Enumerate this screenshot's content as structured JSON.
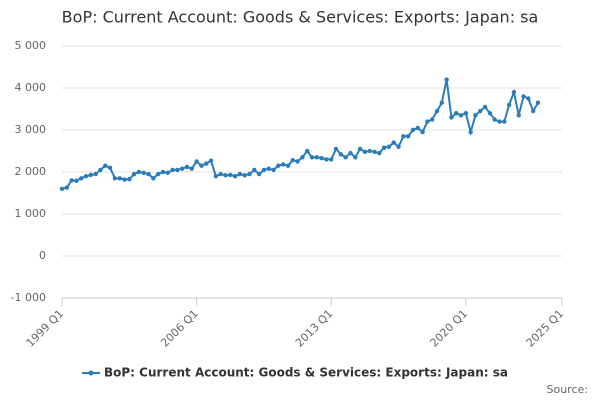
{
  "chart_data": {
    "type": "line",
    "title": "BoP: Current Account: Goods & Services: Exports: Japan: sa",
    "source": "Source:",
    "x": [
      1999,
      1999.25,
      1999.5,
      1999.75,
      2000,
      2000.25,
      2000.5,
      2000.75,
      2001,
      2001.25,
      2001.5,
      2001.75,
      2002,
      2002.25,
      2002.5,
      2002.75,
      2003,
      2003.25,
      2003.5,
      2003.75,
      2004,
      2004.25,
      2004.5,
      2004.75,
      2005,
      2005.25,
      2005.5,
      2005.75,
      2006,
      2006.25,
      2006.5,
      2006.75,
      2007,
      2007.25,
      2007.5,
      2007.75,
      2008,
      2008.25,
      2008.5,
      2008.75,
      2009,
      2009.25,
      2009.5,
      2009.75,
      2010,
      2010.25,
      2010.5,
      2010.75,
      2011,
      2011.25,
      2011.5,
      2011.75,
      2012,
      2012.25,
      2012.5,
      2012.75,
      2013,
      2013.25,
      2013.5,
      2013.75,
      2014,
      2014.25,
      2014.5,
      2014.75,
      2015,
      2015.25,
      2015.5,
      2015.75,
      2016,
      2016.25,
      2016.5,
      2016.75,
      2017,
      2017.25,
      2017.5,
      2017.75,
      2018,
      2018.25,
      2018.5,
      2018.75,
      2019,
      2019.25,
      2019.5,
      2019.75,
      2020,
      2020.25,
      2020.5,
      2020.75,
      2021,
      2021.25,
      2021.5,
      2021.75,
      2022,
      2022.25,
      2022.5,
      2022.75,
      2023,
      2023.25,
      2023.5,
      2023.75
    ],
    "series": [
      {
        "name": "BoP: Current Account: Goods & Services: Exports: Japan: sa",
        "color": "#2a7db8",
        "values": [
          1600,
          1630,
          1800,
          1790,
          1850,
          1900,
          1930,
          1950,
          2050,
          2150,
          2100,
          1850,
          1850,
          1820,
          1830,
          1950,
          2000,
          1980,
          1950,
          1850,
          1950,
          2000,
          1980,
          2050,
          2050,
          2080,
          2120,
          2080,
          2250,
          2150,
          2200,
          2270,
          1900,
          1950,
          1920,
          1930,
          1900,
          1950,
          1920,
          1950,
          2050,
          1950,
          2050,
          2080,
          2050,
          2150,
          2180,
          2150,
          2280,
          2250,
          2350,
          2500,
          2350,
          2350,
          2330,
          2300,
          2300,
          2550,
          2420,
          2350,
          2450,
          2350,
          2550,
          2480,
          2500,
          2480,
          2450,
          2580,
          2600,
          2700,
          2600,
          2850,
          2850,
          3000,
          3050,
          2950,
          3200,
          3250,
          3450,
          3650,
          4200,
          3300,
          3400,
          3350,
          3400,
          2950,
          3350,
          3450,
          3550,
          3400,
          3250,
          3200,
          3200,
          3600,
          3900,
          3350,
          3800,
          3750,
          3450,
          3650
        ]
      }
    ],
    "xlim": [
      1999,
      2025
    ],
    "xticks": [
      {
        "value": 1999,
        "label": "1999 Q1"
      },
      {
        "value": 2006,
        "label": "2006 Q1"
      },
      {
        "value": 2013,
        "label": "2013 Q1"
      },
      {
        "value": 2020,
        "label": "2020 Q1"
      },
      {
        "value": 2025,
        "label": "2025 Q1"
      }
    ],
    "ylim": [
      -1000,
      5000
    ],
    "yticks": [
      {
        "value": -1000,
        "label": "-1 000"
      },
      0,
      {
        "value": 1000,
        "label": "1 000"
      },
      {
        "value": 2000,
        "label": "2 000"
      },
      {
        "value": 3000,
        "label": "3 000"
      },
      {
        "value": 4000,
        "label": "4 000"
      },
      {
        "value": 5000,
        "label": "5 000"
      }
    ],
    "grid": true
  }
}
